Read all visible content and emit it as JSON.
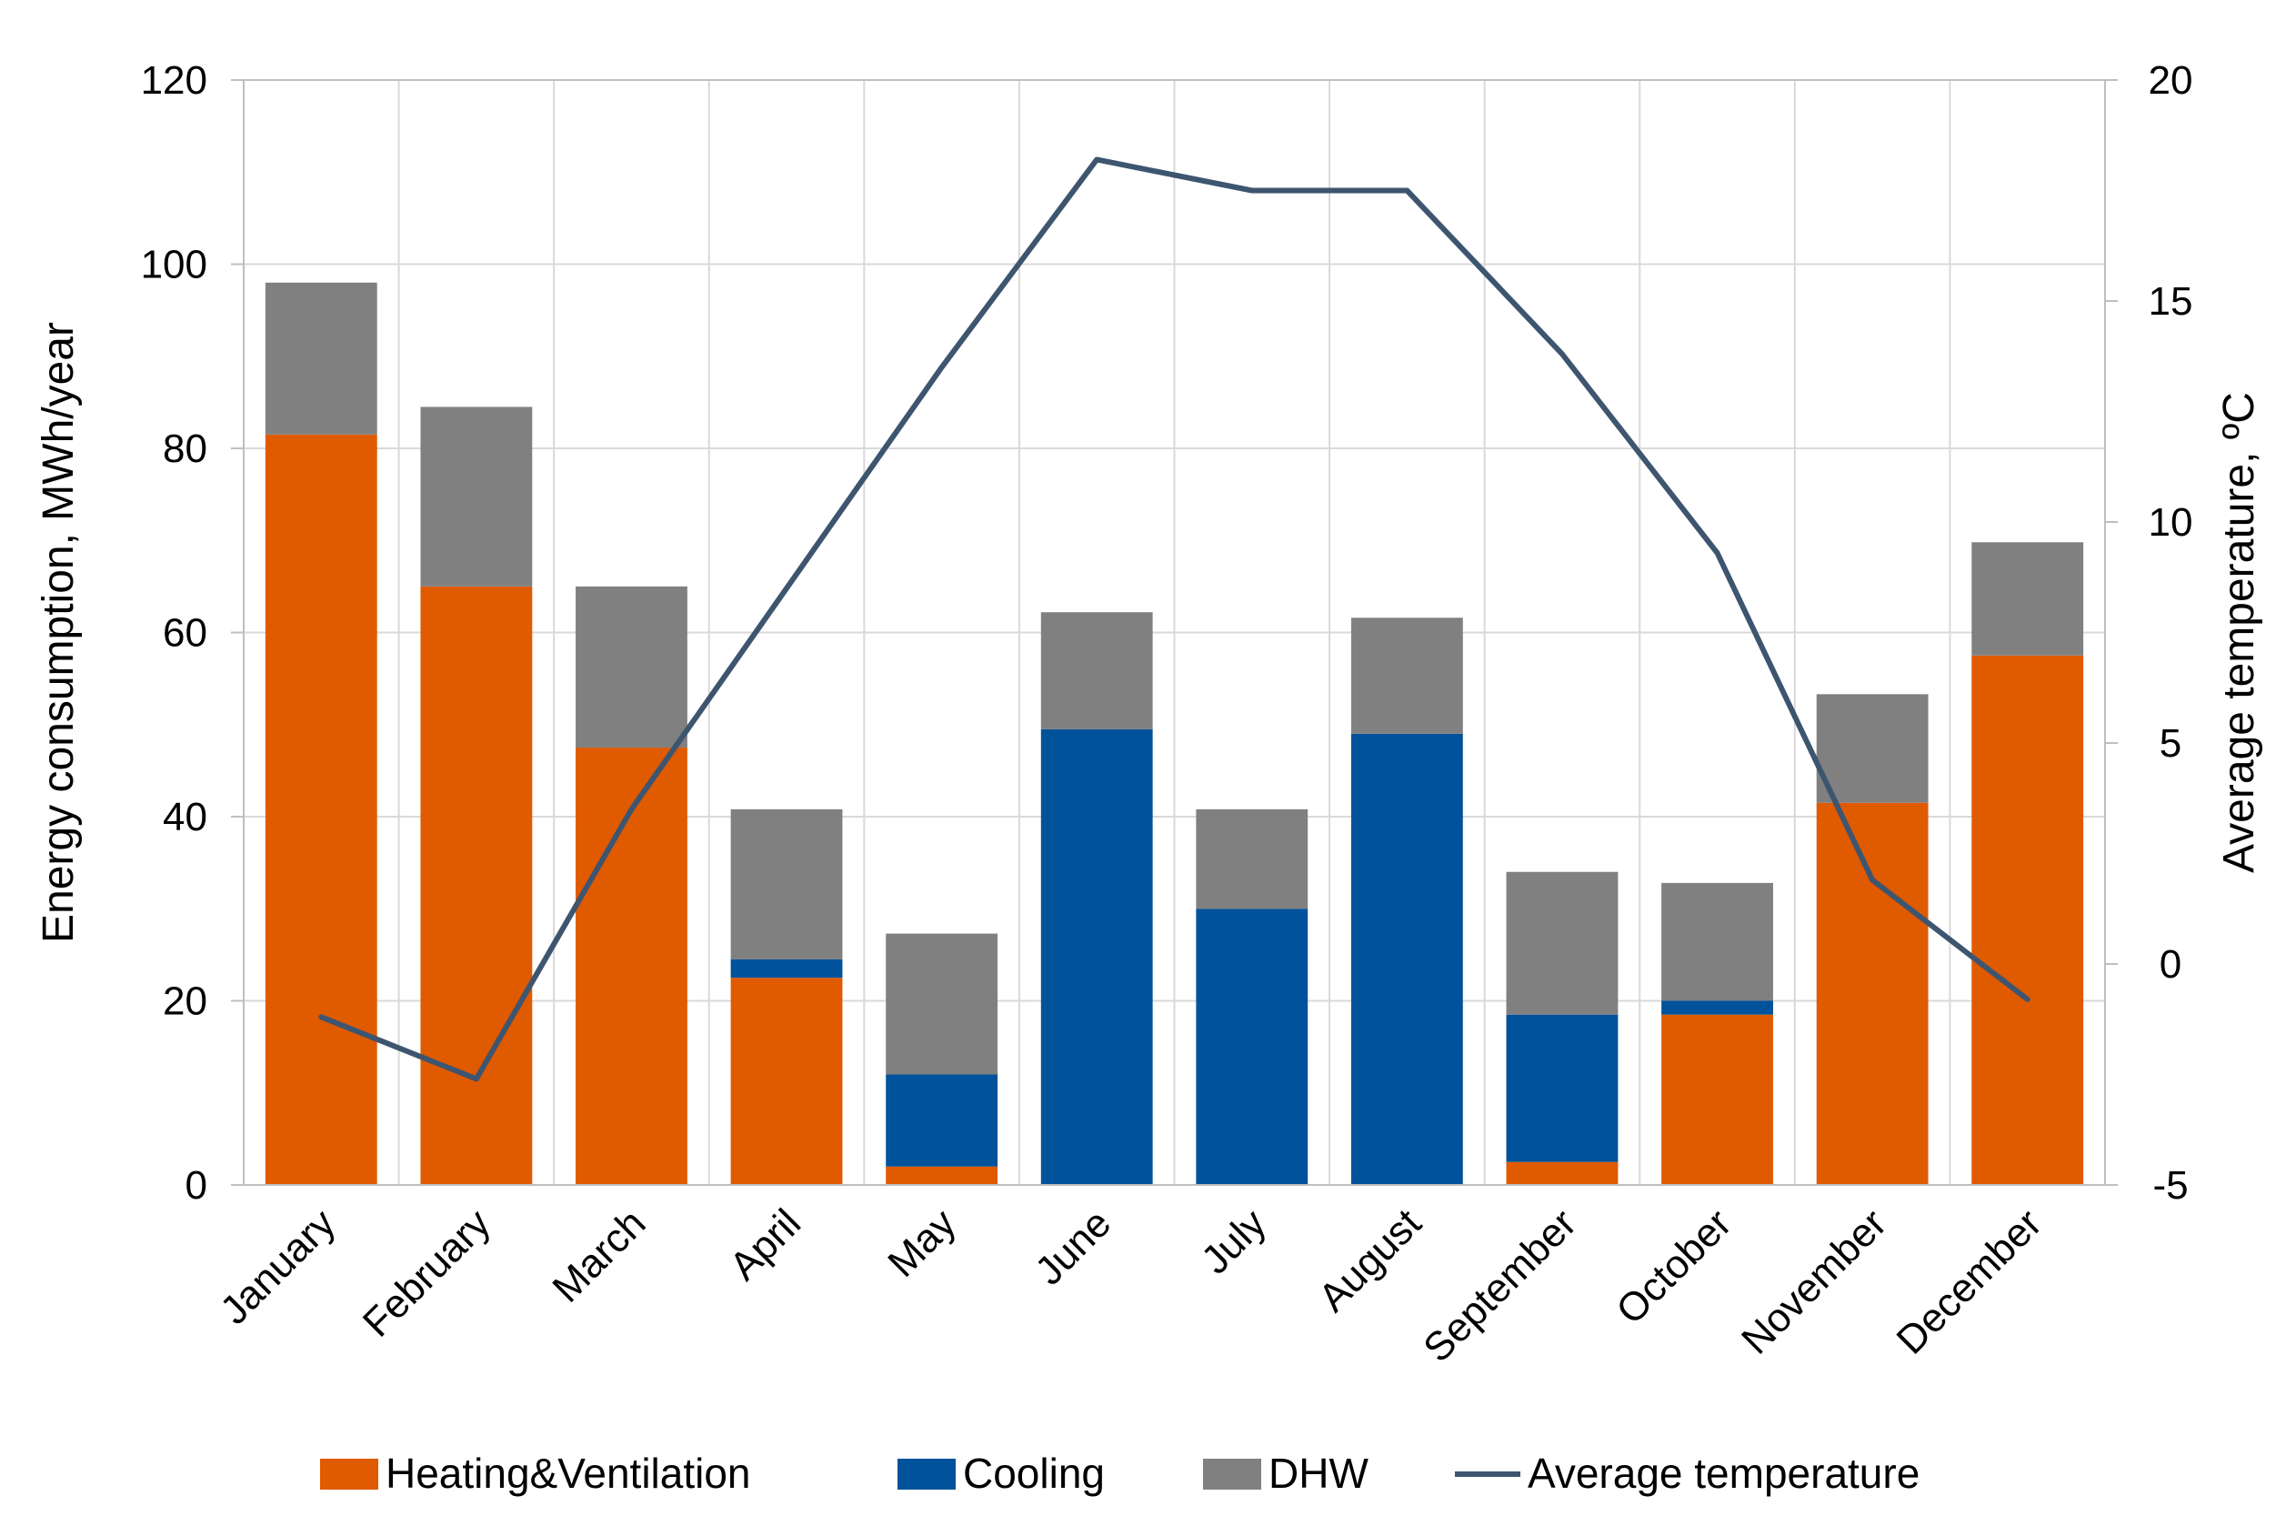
{
  "chart_data": {
    "type": "bar",
    "stacked": true,
    "categories": [
      "January",
      "February",
      "March",
      "April",
      "May",
      "June",
      "July",
      "August",
      "September",
      "October",
      "November",
      "December"
    ],
    "series": [
      {
        "name": "Heating&Ventilation",
        "color": "#E05A00",
        "values": [
          81.5,
          65.0,
          47.5,
          22.5,
          2.0,
          0,
          0,
          0,
          2.5,
          18.5,
          41.5,
          57.5
        ]
      },
      {
        "name": "Cooling",
        "color": "#00529B",
        "values": [
          0,
          0,
          0,
          2.0,
          10.0,
          49.5,
          30.0,
          49.0,
          16.0,
          1.5,
          0,
          0
        ]
      },
      {
        "name": "DHW",
        "color": "#808080",
        "values": [
          16.5,
          19.5,
          17.5,
          16.3,
          15.3,
          12.7,
          10.8,
          12.6,
          15.5,
          12.8,
          11.8,
          12.3
        ]
      }
    ],
    "line_series": {
      "name": "Average temperature",
      "color": "#3E5570",
      "axis": "right",
      "values": [
        -1.2,
        -2.6,
        3.5,
        8.5,
        13.5,
        18.2,
        17.5,
        17.5,
        13.8,
        9.3,
        1.9,
        -0.8
      ]
    },
    "ylabel": "Energy consumption, MWh/year",
    "ylim": [
      0,
      120
    ],
    "yticks": [
      0,
      20,
      40,
      60,
      80,
      100,
      120
    ],
    "y2label": "Average temperature, ºC",
    "y2lim": [
      -5,
      20
    ],
    "y2ticks": [
      -5,
      0,
      5,
      10,
      15,
      20
    ],
    "grid": true,
    "legend_position": "bottom"
  }
}
